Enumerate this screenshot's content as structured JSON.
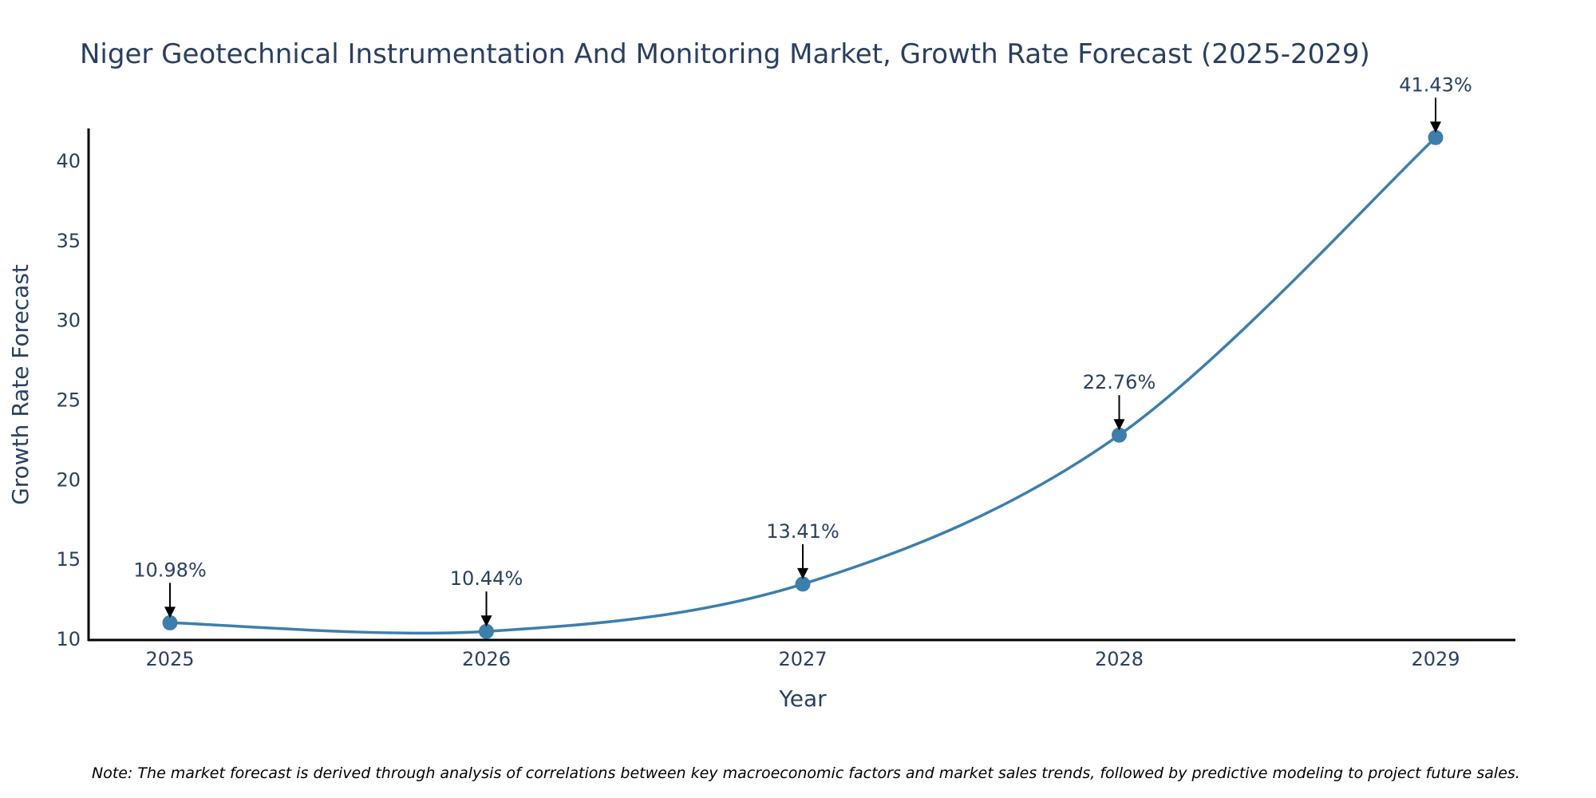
{
  "chart_data": {
    "type": "line",
    "title": "Niger Geotechnical Instrumentation And Monitoring Market, Growth Rate Forecast (2025-2029)",
    "xlabel": "Year",
    "ylabel": "Growth Rate Forecast",
    "categories": [
      "2025",
      "2026",
      "2027",
      "2028",
      "2029"
    ],
    "series": [
      {
        "name": "Growth Rate Forecast",
        "values": [
          10.98,
          10.44,
          13.41,
          22.76,
          41.43
        ],
        "labels": [
          "10.98%",
          "10.44%",
          "13.41%",
          "22.76%",
          "41.43%"
        ],
        "color": "#3d7eab"
      }
    ],
    "ylim": [
      9.9,
      42
    ],
    "yticks": [
      10,
      15,
      20,
      25,
      30,
      35,
      40
    ],
    "ytick_labels": [
      "10",
      "15",
      "20",
      "25",
      "30",
      "35",
      "40"
    ],
    "grid": false,
    "line_shape": "spline"
  },
  "note": "Note: The market forecast is derived through analysis of correlations between key macroeconomic factors and market sales trends, followed by predictive modeling to project future sales.",
  "colors": {
    "text": "#2a3f5f",
    "axis": "#000000",
    "arrow": "#000000"
  }
}
